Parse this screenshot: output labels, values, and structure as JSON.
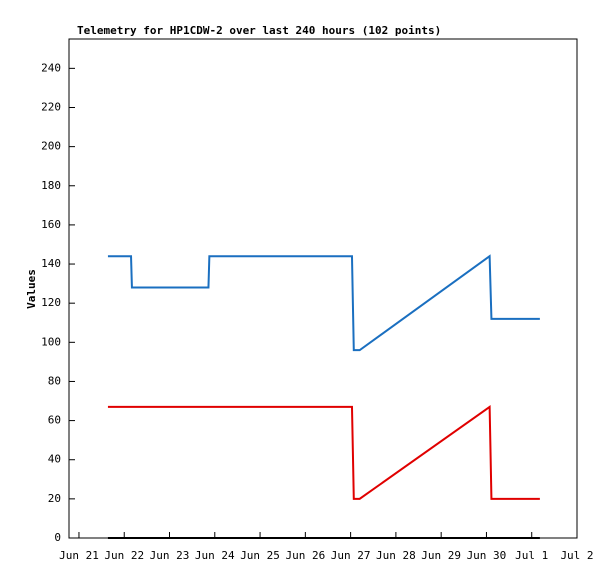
{
  "chart_data": {
    "type": "line",
    "title": "Telemetry for HP1CDW-2 over last 240 hours (102 points)",
    "y_label": "Values",
    "xlim": [
      20.78,
      32
    ],
    "xticks": [
      {
        "value": 21,
        "label": "Jun 21"
      },
      {
        "value": 22,
        "label": "Jun 22"
      },
      {
        "value": 23,
        "label": "Jun 23"
      },
      {
        "value": 24,
        "label": "Jun 24"
      },
      {
        "value": 25,
        "label": "Jun 25"
      },
      {
        "value": 26,
        "label": "Jun 26"
      },
      {
        "value": 27,
        "label": "Jun 27"
      },
      {
        "value": 28,
        "label": "Jun 28"
      },
      {
        "value": 29,
        "label": "Jun 29"
      },
      {
        "value": 30,
        "label": "Jun 30"
      },
      {
        "value": 31,
        "label": "Jul 1"
      },
      {
        "value": 32,
        "label": "Jul 2"
      }
    ],
    "ylim": [
      0,
      255
    ],
    "yticks": [
      0,
      20,
      40,
      60,
      80,
      100,
      120,
      140,
      160,
      180,
      200,
      220,
      240
    ],
    "series": [
      {
        "color": "#1a6fc0",
        "x": [
          21.64,
          22.15,
          22.17,
          23.86,
          23.88,
          27.03,
          27.05,
          27.07,
          27.2,
          30.07,
          30.09,
          30.11,
          31.18
        ],
        "values": [
          144,
          144,
          128,
          128,
          144,
          144,
          120,
          96,
          96,
          144,
          128,
          112,
          112
        ]
      },
      {
        "color": "#e00000",
        "x": [
          21.64,
          27.03,
          27.05,
          27.07,
          27.2,
          30.07,
          30.09,
          30.11,
          31.18
        ],
        "values": [
          67,
          67,
          44,
          20,
          20,
          67,
          44,
          20,
          20
        ]
      },
      {
        "color": "#000000",
        "x": [
          21.64,
          31.18
        ],
        "values": [
          0,
          0
        ]
      }
    ]
  }
}
